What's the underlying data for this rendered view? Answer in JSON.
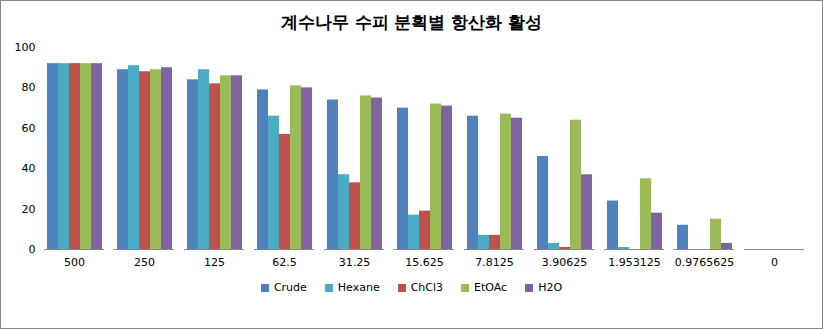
{
  "chart_data": {
    "type": "bar",
    "title": "계수나무 수피 분획별 항산화 활성",
    "categories": [
      "500",
      "250",
      "125",
      "62.5",
      "31.25",
      "15.625",
      "7.8125",
      "3.90625",
      "1.953125",
      "0.9765625",
      "0"
    ],
    "series": [
      {
        "name": "Crude",
        "color": "#4f81bd",
        "values": [
          92,
          89,
          84,
          79,
          74,
          70,
          66,
          46,
          24,
          12,
          0
        ]
      },
      {
        "name": "Hexane",
        "color": "#4bacc6",
        "values": [
          92,
          91,
          89,
          66,
          37,
          17,
          7,
          3,
          1,
          0,
          0
        ]
      },
      {
        "name": "ChCl3",
        "color": "#c0504d",
        "values": [
          92,
          88,
          82,
          57,
          33,
          19,
          7,
          1,
          0,
          0,
          0
        ]
      },
      {
        "name": "EtOAc",
        "color": "#9bbb59",
        "values": [
          92,
          89,
          86,
          81,
          76,
          72,
          67,
          64,
          35,
          15,
          0
        ]
      },
      {
        "name": "H2O",
        "color": "#8064a2",
        "values": [
          92,
          90,
          86,
          80,
          75,
          71,
          65,
          37,
          18,
          3,
          0
        ]
      }
    ],
    "ylim": [
      0,
      100
    ],
    "yticks": [
      0,
      20,
      40,
      60,
      80,
      100
    ],
    "grid": false,
    "legend": "bottom"
  }
}
